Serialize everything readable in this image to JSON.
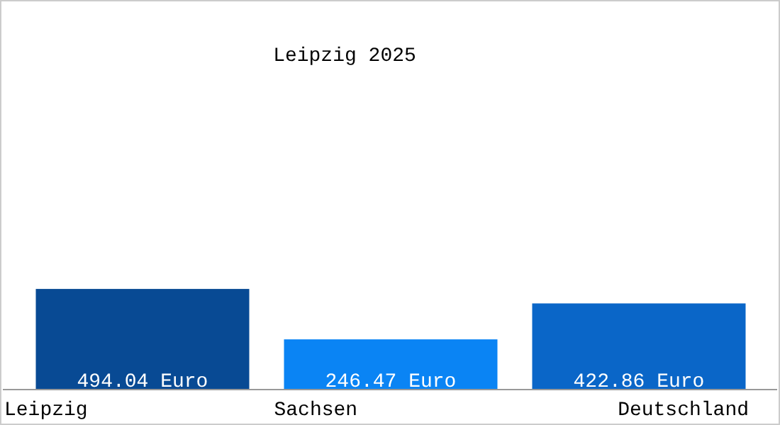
{
  "chart_data": {
    "type": "bar",
    "title": "Leipzig 2025",
    "categories": [
      "Leipzig",
      "Sachsen",
      "Deutschland"
    ],
    "values": [
      494.04,
      246.47,
      422.86
    ],
    "colors": [
      "#084a94",
      "#0a84f4",
      "#0a66c8"
    ],
    "value_labels": [
      "494.04 Euro",
      "246.47 Euro",
      "422.86 Euro"
    ]
  }
}
